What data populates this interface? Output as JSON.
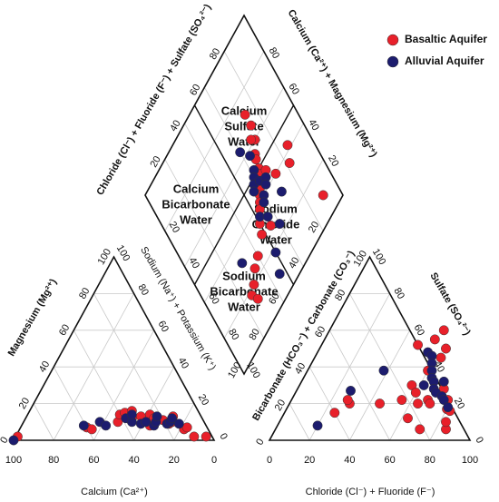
{
  "chart_data": [
    {
      "type": "scatter",
      "subtype": "piper-diagram",
      "legend": {
        "placement": "top-right",
        "entries": [
          {
            "name": "Basaltic Aquifer",
            "color": "#e8202a"
          },
          {
            "name": "Alluvial Aquifer",
            "color": "#1c1c6e"
          }
        ]
      },
      "cation_triangle": {
        "axis_labels": {
          "magnesium": "Magnesium (Mg²⁺)",
          "sodium_potassium": "Sodium (Na⁺) + Potassium (K⁺)",
          "calcium": "Calcium (Ca²⁺)"
        },
        "ticks_mg": [
          "0",
          "20",
          "40",
          "60",
          "80",
          "100"
        ],
        "ticks_na": [
          "100",
          "80",
          "60",
          "40",
          "20",
          "0"
        ],
        "ticks_ca": [
          "100",
          "80",
          "60",
          "40",
          "20",
          "0"
        ]
      },
      "anion_triangle": {
        "axis_labels": {
          "bicarbonate_carbonate": "Bicarbonate (HCO₃⁻) + Carbonate (CO₃⁻)",
          "sulfate": "Sulfate (SO₄²⁻)",
          "chloride_fluoride": "Chloride (Cl⁻) + Fluoride (F⁻)"
        },
        "ticks_hco3": [
          "100",
          "80",
          "60",
          "40",
          "20",
          "0"
        ],
        "ticks_so4": [
          "0",
          "20",
          "40",
          "60",
          "80",
          "100"
        ],
        "ticks_cl": [
          "0",
          "20",
          "40",
          "60",
          "80",
          "100"
        ]
      },
      "diamond": {
        "axis_labels": {
          "left": "Chloride (Cl⁻) + Fluoride (F⁻) + Sulfate (SO₄²⁻)",
          "right": "Calcium (Ca²⁺) + Magnesium (Mg²⁺)"
        },
        "ticks_left": [
          "20",
          "40",
          "60",
          "80"
        ],
        "ticks_right": [
          "80",
          "60",
          "40",
          "20"
        ],
        "ticks_lower_left": [
          "20",
          "40",
          "60",
          "80",
          "100"
        ],
        "ticks_lower_right": [
          "20",
          "40",
          "60",
          "80",
          "100"
        ],
        "regions": [
          {
            "name": "Calcium Sulfate Water",
            "lines": [
              "Calcium",
              "Sulfate",
              "Water"
            ]
          },
          {
            "name": "Calcium Bicarbonate Water",
            "lines": [
              "Calcium",
              "Bicarbonate",
              "Water"
            ]
          },
          {
            "name": "Sodium Chloride Water",
            "lines": [
              "Sodium",
              "Chloride",
              "Water"
            ]
          },
          {
            "name": "Sodium Bicarbonate Water",
            "lines": [
              "Sodium",
              "Bicarbonate",
              "Water"
            ]
          }
        ]
      },
      "series": [
        {
          "name": "Basaltic Aquifer",
          "color": "#e8202a",
          "cation_points_ca_mg": [
            [
              97,
              2
            ],
            [
              60,
              7
            ],
            [
              58,
              6
            ],
            [
              43,
              10
            ],
            [
              40,
              14
            ],
            [
              37,
              15
            ],
            [
              35,
              12
            ],
            [
              33,
              16
            ],
            [
              30,
              13
            ],
            [
              28,
              8
            ],
            [
              25,
              14
            ],
            [
              24,
              12
            ],
            [
              20,
              11
            ],
            [
              18,
              9
            ],
            [
              16,
              10
            ],
            [
              14,
              13
            ],
            [
              12,
              6
            ],
            [
              10,
              7
            ],
            [
              9,
              2
            ],
            [
              3,
              2
            ]
          ],
          "anion_points_cl_so4": [
            [
              25,
              15
            ],
            [
              30,
              20
            ],
            [
              28,
              22
            ],
            [
              45,
              20
            ],
            [
              55,
              22
            ],
            [
              48,
              52
            ],
            [
              60,
              38
            ],
            [
              63,
              45
            ],
            [
              55,
              55
            ],
            [
              63,
              50
            ],
            [
              57,
              60
            ],
            [
              56,
              30
            ],
            [
              60,
              26
            ],
            [
              63,
              12
            ],
            [
              68,
              22
            ],
            [
              64,
              20
            ],
            [
              70,
              20
            ],
            [
              78,
              22
            ],
            [
              80,
              17
            ],
            [
              82,
              16
            ],
            [
              85,
              6
            ],
            [
              83,
              10
            ],
            [
              72,
              6
            ],
            [
              73,
              28
            ]
          ],
          "diamond_points": [
            [
              73,
              72
            ],
            [
              73,
              66
            ],
            [
              71,
              60
            ],
            [
              69,
              62
            ],
            [
              67,
              56
            ],
            [
              66,
              54
            ],
            [
              65,
              50
            ],
            [
              64,
              48
            ],
            [
              68,
              46
            ],
            [
              60,
              44
            ],
            [
              58,
              42
            ],
            [
              56,
              40
            ],
            [
              54,
              38
            ],
            [
              50,
              34
            ],
            [
              48,
              30
            ],
            [
              55,
              28
            ],
            [
              40,
              26
            ],
            [
              35,
              24
            ],
            [
              30,
              20
            ],
            [
              26,
              18
            ],
            [
              28,
              14
            ],
            [
              72,
              40
            ],
            [
              82,
              36
            ],
            [
              86,
              42
            ],
            [
              90,
              10
            ]
          ]
        },
        {
          "name": "Alluvial Aquifer",
          "color": "#1c1c6e",
          "cation_points_ca_mg": [
            [
              100,
              0
            ],
            [
              61,
              8
            ],
            [
              52,
              10
            ],
            [
              50,
              8
            ],
            [
              38,
              12
            ],
            [
              36,
              10
            ],
            [
              34,
              14
            ],
            [
              32,
              9
            ],
            [
              29,
              10
            ],
            [
              26,
              8
            ],
            [
              24,
              10
            ],
            [
              22,
              13
            ],
            [
              19,
              9
            ],
            [
              17,
              10
            ],
            [
              15,
              12
            ],
            [
              13,
              9
            ]
          ],
          "anion_points_cl_so4": [
            [
              20,
              8
            ],
            [
              27,
              27
            ],
            [
              38,
              38
            ],
            [
              55,
              48
            ],
            [
              58,
              46
            ],
            [
              60,
              42
            ],
            [
              62,
              38
            ],
            [
              62,
              30
            ],
            [
              64,
              34
            ],
            [
              66,
              32
            ],
            [
              68,
              28
            ],
            [
              70,
              26
            ],
            [
              74,
              24
            ],
            [
              76,
              22
            ],
            [
              80,
              18
            ],
            [
              71,
              32
            ]
          ],
          "diamond_points": [
            [
              60,
              64
            ],
            [
              64,
              58
            ],
            [
              62,
              52
            ],
            [
              60,
              50
            ],
            [
              58,
              48
            ],
            [
              56,
              46
            ],
            [
              62,
              46
            ],
            [
              66,
              44
            ],
            [
              64,
              42
            ],
            [
              60,
              40
            ],
            [
              58,
              38
            ],
            [
              52,
              36
            ],
            [
              56,
              32
            ],
            [
              70,
              32
            ],
            [
              60,
              24
            ],
            [
              50,
              18
            ],
            [
              46,
              10
            ],
            [
              30,
              32
            ]
          ]
        }
      ]
    }
  ]
}
